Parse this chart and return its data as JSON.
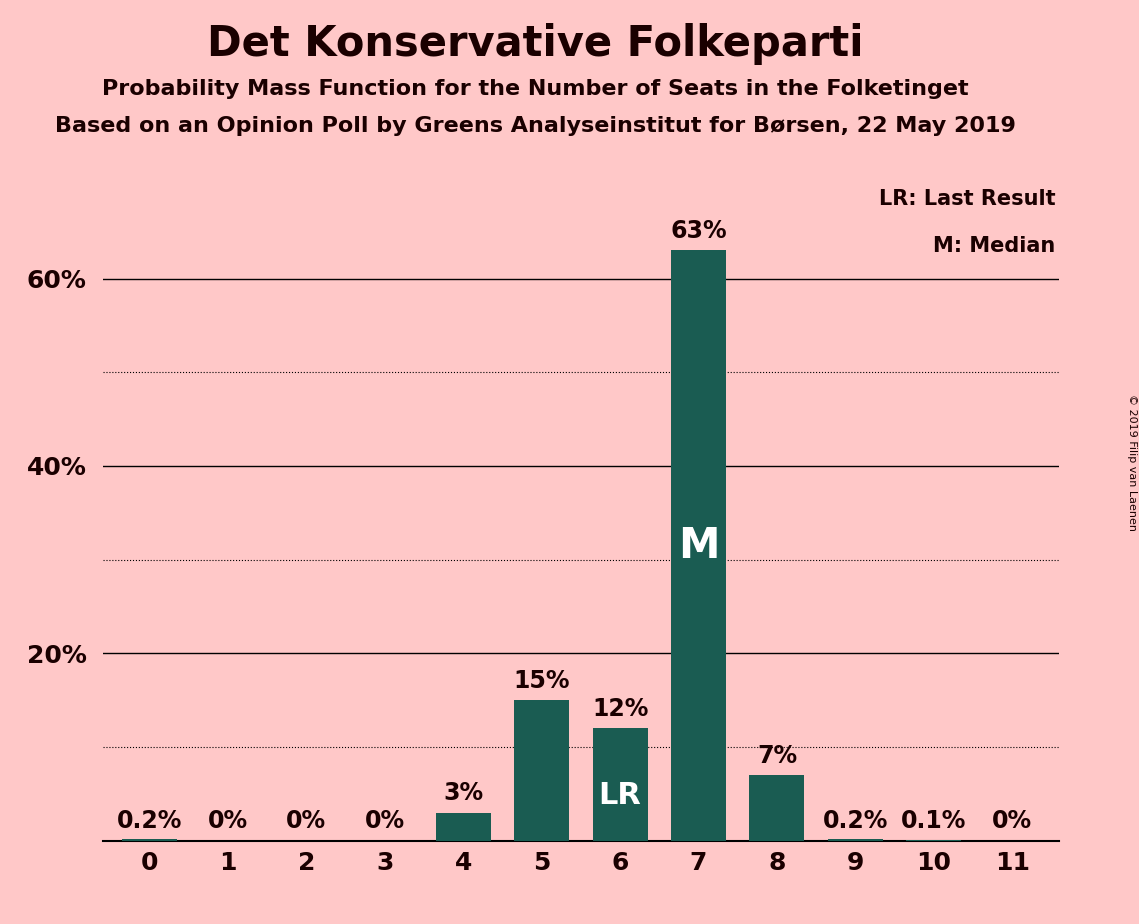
{
  "title": "Det Konservative Folkeparti",
  "subtitle1": "Probability Mass Function for the Number of Seats in the Folketinget",
  "subtitle2": "Based on an Opinion Poll by Greens Analyseinstitut for Børsen, 22 May 2019",
  "copyright": "© 2019 Filip van Laenen",
  "categories": [
    0,
    1,
    2,
    3,
    4,
    5,
    6,
    7,
    8,
    9,
    10,
    11
  ],
  "values": [
    0.2,
    0,
    0,
    0,
    3,
    15,
    12,
    63,
    7,
    0.2,
    0.1,
    0
  ],
  "bar_color": "#1a5c52",
  "background_color": "#ffc8c8",
  "label_color": "#1a0000",
  "bar_labels": [
    "0.2%",
    "0%",
    "0%",
    "0%",
    "3%",
    "15%",
    "12%",
    "63%",
    "7%",
    "0.2%",
    "0.1%",
    "0%"
  ],
  "lr_bar": 6,
  "median_bar": 7,
  "ylim_max": 70,
  "solid_ticks": [
    20,
    40,
    60
  ],
  "dotted_ticks": [
    10,
    30,
    50
  ],
  "legend_lr": "LR: Last Result",
  "legend_m": "M: Median",
  "title_fontsize": 30,
  "subtitle_fontsize": 16,
  "label_fontsize": 17,
  "tick_fontsize": 18,
  "lr_fontsize": 22,
  "m_fontsize": 30,
  "legend_fontsize": 15
}
